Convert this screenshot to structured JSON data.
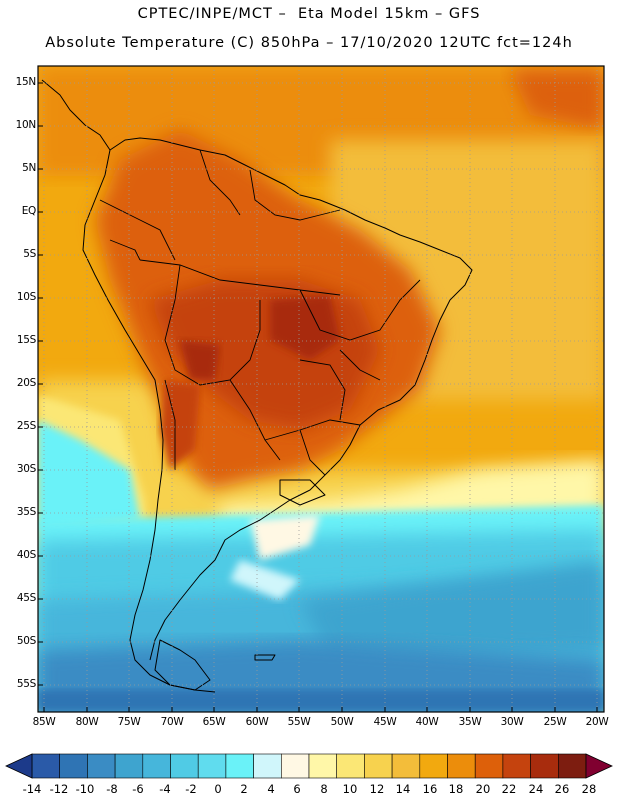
{
  "header": {
    "line1": "CPTEC/INPE/MCT –  Eta Model 15km – GFS",
    "line2": "Absolute Temperature (C) 850hPa – 17/10/2020 12UTC fct=124h"
  },
  "map": {
    "lat_labels": [
      "15N",
      "10N",
      "5N",
      "EQ",
      "5S",
      "10S",
      "15S",
      "20S",
      "25S",
      "30S",
      "35S",
      "40S",
      "45S",
      "50S",
      "55S"
    ],
    "lon_labels": [
      "85W",
      "80W",
      "75W",
      "70W",
      "65W",
      "60W",
      "55W",
      "50W",
      "45W",
      "40W",
      "35W",
      "30W",
      "25W",
      "20W"
    ],
    "grid": "dotted"
  },
  "colorbar": {
    "labels": [
      "-14",
      "-12",
      "-10",
      "-8",
      "-6",
      "-4",
      "-2",
      "0",
      "2",
      "4",
      "6",
      "8",
      "10",
      "12",
      "14",
      "16",
      "18",
      "20",
      "22",
      "24",
      "26",
      "28"
    ],
    "colors": [
      "#1c3a8a",
      "#2a5aa8",
      "#2f74b4",
      "#3a8cc4",
      "#3ea4cf",
      "#46b6db",
      "#50cbe5",
      "#60dcee",
      "#6af2f8",
      "#d0f6fb",
      "#fff8e4",
      "#fff7a8",
      "#fbe775",
      "#f7d24e",
      "#f3bd3a",
      "#f2a90f",
      "#ec8d0b",
      "#dd600a",
      "#c5430e",
      "#a82c0d",
      "#7d1d10",
      "#800030"
    ]
  }
}
